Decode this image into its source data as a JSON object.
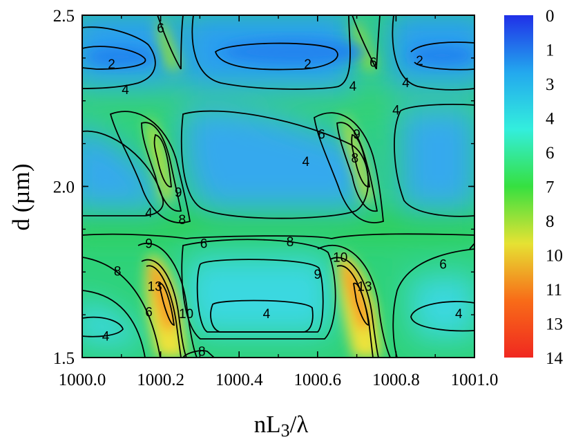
{
  "chart_data": {
    "type": "heatmap",
    "title": "",
    "xlabel": "nL",
    "xlabel_sub": "3",
    "xlabel_tail": "/λ",
    "ylabel": "d (µm)",
    "xlim": [
      1000.0,
      1001.0
    ],
    "ylim": [
      1.5,
      2.5
    ],
    "x_ticks": [
      "1000.0",
      "1000.2",
      "1000.4",
      "1000.6",
      "1000.8",
      "1001.0"
    ],
    "y_ticks": [
      "1.5",
      "2.0",
      "2.5"
    ],
    "colorbar": {
      "labels": [
        "0",
        "1",
        "3",
        "4",
        "6",
        "7",
        "8",
        "10",
        "11",
        "13",
        "14"
      ],
      "min": 0,
      "max": 14,
      "colors": [
        "#2030e8",
        "#23a8ee",
        "#33eedd",
        "#36e040",
        "#e6e233",
        "#f86c18",
        "#f02820"
      ]
    },
    "contour_labels": [
      {
        "text": "6",
        "x": 1000.2,
        "y": 2.46
      },
      {
        "text": "6",
        "x": 1000.742,
        "y": 2.36
      },
      {
        "text": "2",
        "x": 1000.075,
        "y": 2.355
      },
      {
        "text": "2",
        "x": 1000.575,
        "y": 2.355
      },
      {
        "text": "2",
        "x": 1000.86,
        "y": 2.365
      },
      {
        "text": "4",
        "x": 1000.11,
        "y": 2.28
      },
      {
        "text": "4",
        "x": 1000.69,
        "y": 2.29
      },
      {
        "text": "4",
        "x": 1000.825,
        "y": 2.3
      },
      {
        "text": "4",
        "x": 1000.8,
        "y": 2.22
      },
      {
        "text": "6",
        "x": 1000.61,
        "y": 2.15
      },
      {
        "text": "9",
        "x": 1000.7,
        "y": 2.15
      },
      {
        "text": "8",
        "x": 1000.695,
        "y": 2.08
      },
      {
        "text": "4",
        "x": 1000.57,
        "y": 2.07
      },
      {
        "text": "9",
        "x": 1000.245,
        "y": 1.98
      },
      {
        "text": "4",
        "x": 1000.17,
        "y": 1.92
      },
      {
        "text": "8",
        "x": 1000.255,
        "y": 1.9
      },
      {
        "text": "9",
        "x": 1000.17,
        "y": 1.83
      },
      {
        "text": "6",
        "x": 1000.31,
        "y": 1.83
      },
      {
        "text": "8",
        "x": 1000.53,
        "y": 1.835
      },
      {
        "text": "10",
        "x": 1000.658,
        "y": 1.79
      },
      {
        "text": "8",
        "x": 1000.09,
        "y": 1.75
      },
      {
        "text": "9",
        "x": 1000.6,
        "y": 1.74
      },
      {
        "text": "6",
        "x": 1000.92,
        "y": 1.77
      },
      {
        "text": "13",
        "x": 1000.185,
        "y": 1.705
      },
      {
        "text": "13",
        "x": 1000.72,
        "y": 1.705
      },
      {
        "text": "6",
        "x": 1000.17,
        "y": 1.63
      },
      {
        "text": "10",
        "x": 1000.265,
        "y": 1.625
      },
      {
        "text": "4",
        "x": 1000.47,
        "y": 1.625
      },
      {
        "text": "4",
        "x": 1000.96,
        "y": 1.625
      },
      {
        "text": "4",
        "x": 1000.06,
        "y": 1.56
      },
      {
        "text": "8",
        "x": 1000.305,
        "y": 1.515
      }
    ]
  }
}
